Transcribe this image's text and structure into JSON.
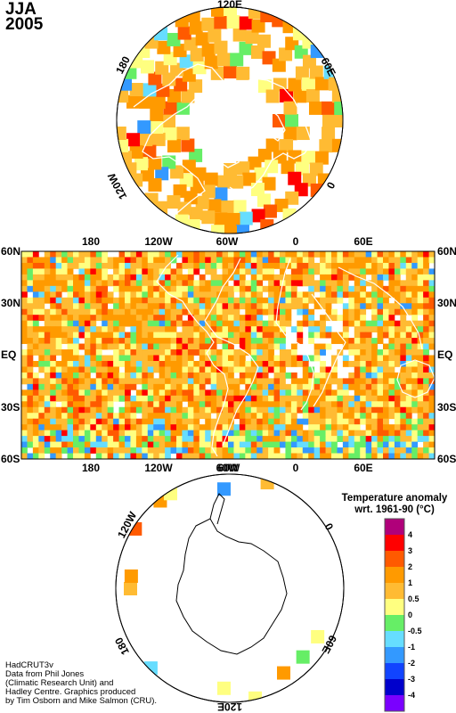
{
  "title": {
    "season": "JJA",
    "year": "2005"
  },
  "north_polar": {
    "labels": {
      "top": "120E",
      "left": "180",
      "right": "60E",
      "lower_left": "120W",
      "lower_right": "0"
    }
  },
  "main_map": {
    "top_lon_labels": [
      "180",
      "120W",
      "60W",
      "0",
      "60E"
    ],
    "bottom_lon_labels": [
      "180",
      "120W",
      "60W",
      "0",
      "60E"
    ],
    "lat_labels": [
      "60N",
      "30N",
      "EQ",
      "30S",
      "60S"
    ]
  },
  "south_polar": {
    "labels": {
      "top": "60W",
      "left": "120W",
      "right": "0",
      "lower_left": "180",
      "lower_right": "60E",
      "bottom": "120E"
    }
  },
  "legend": {
    "title": [
      "Temperature anomaly",
      "wrt. 1961-90  (°C)"
    ],
    "labels": [
      "4",
      "3",
      "2",
      "1",
      "0.5",
      "0",
      "-0.5",
      "-1",
      "-2",
      "-3",
      "-4"
    ],
    "colors": [
      "#b0007a",
      "#ff0000",
      "#ff5a00",
      "#ff9a00",
      "#ffbb33",
      "#ffff80",
      "#66ee66",
      "#66ddff",
      "#3399ff",
      "#1144ff",
      "#0000cc",
      "#7a00ff"
    ]
  },
  "credits": [
    "HadCRUT3v",
    "Data from Phil Jones",
    "(Climatic Research Unit) and",
    "Hadley Centre.  Graphics produced",
    "by Tim Osborn and Mike Salmon (CRU)."
  ]
}
